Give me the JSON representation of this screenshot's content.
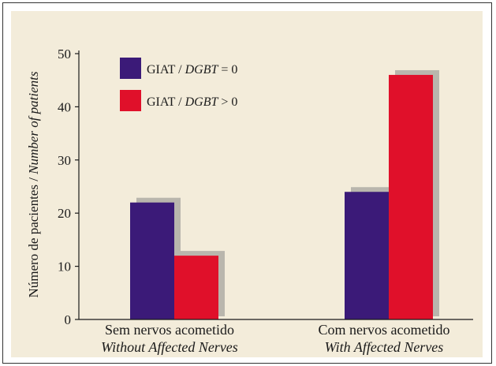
{
  "chart_data": {
    "type": "bar",
    "ylabel": {
      "main": "Número de pacientes / ",
      "italic": "Number of patients"
    },
    "ylim": [
      0,
      50
    ],
    "yticks": [
      0,
      10,
      20,
      30,
      40,
      50
    ],
    "grid": false,
    "legend_position": "top-left",
    "categories": [
      {
        "line1": "Sem nervos acometido",
        "line2": "Without Affected Nerves"
      },
      {
        "line1": "Com nervos acometido",
        "line2": "With Affected Nerves"
      }
    ],
    "series": [
      {
        "name_plain": "GIAT / ",
        "name_italic": "DGBT",
        "name_tail": " = 0",
        "color": "#3b1a78",
        "values": [
          22,
          24
        ]
      },
      {
        "name_plain": "GIAT / ",
        "name_italic": "DGBT",
        "name_tail": " > 0",
        "color": "#e0102a",
        "values": [
          12,
          46
        ]
      }
    ],
    "shadow_color": "#b9b6ad"
  }
}
